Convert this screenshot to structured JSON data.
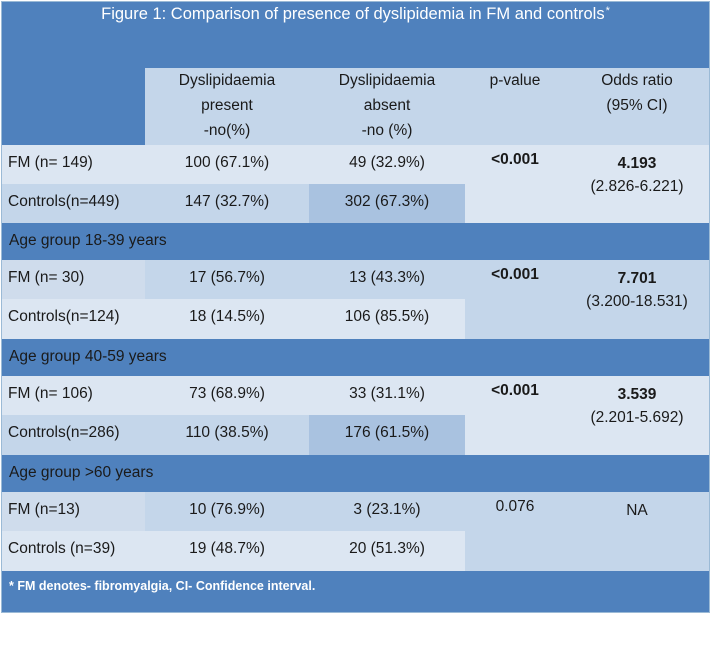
{
  "title": "Figure 1: Comparison of presence of dyslipidemia in FM and controls",
  "title_mark": "*",
  "headers": {
    "present": [
      "Dyslipidaemia",
      "present",
      "-no(%)"
    ],
    "absent": [
      "Dyslipidaemia",
      "absent",
      "-no (%)"
    ],
    "pvalue": "p-value",
    "odds": [
      "Odds ratio",
      "(95% CI)"
    ]
  },
  "sections": [
    {
      "group_label": "",
      "rows": [
        {
          "label": "FM (n= 149)",
          "present": "100 (67.1%)",
          "absent": "49 (32.9%)"
        },
        {
          "label": "Controls(n=449)",
          "present": "147 (32.7%)",
          "absent": "302 (67.3%)"
        }
      ],
      "pvalue": "<0.001",
      "odds_value": "4.193",
      "odds_ci": "(2.826-6.221)"
    },
    {
      "group_label": "Age group 18-39 years",
      "rows": [
        {
          "label": "FM (n= 30)",
          "present": "17 (56.7%)",
          "absent": "13 (43.3%)"
        },
        {
          "label": "Controls(n=124)",
          "present": "18 (14.5%)",
          "absent": "106 (85.5%)"
        }
      ],
      "pvalue": "<0.001",
      "odds_value": "7.701",
      "odds_ci": "(3.200-18.531)"
    },
    {
      "group_label": "Age group 40-59 years",
      "rows": [
        {
          "label": "FM (n= 106)",
          "present": "73 (68.9%)",
          "absent": "33 (31.1%)"
        },
        {
          "label": "Controls(n=286)",
          "present": "110 (38.5%)",
          "absent": "176 (61.5%)"
        }
      ],
      "pvalue": "<0.001",
      "odds_value": "3.539",
      "odds_ci": "(2.201-5.692)"
    },
    {
      "group_label": "Age group >60 years",
      "rows": [
        {
          "label": "FM (n=13)",
          "present": "10 (76.9%)",
          "absent": "3 (23.1%)"
        },
        {
          "label": " Controls (n=39)",
          "present": "19 (48.7%)",
          "absent": "20 (51.3%)"
        }
      ],
      "pvalue": "0.076",
      "odds_value": "NA",
      "odds_ci": ""
    }
  ],
  "footnote": "* FM denotes- fibromyalgia, CI- Confidence interval.",
  "colors": {
    "header_band": "#4f81bd",
    "row_light": "#cfdcec",
    "row_lighter": "#dce6f2",
    "row_mid": "#c4d6ea",
    "row_mid_dark": "#a9c2e0"
  }
}
